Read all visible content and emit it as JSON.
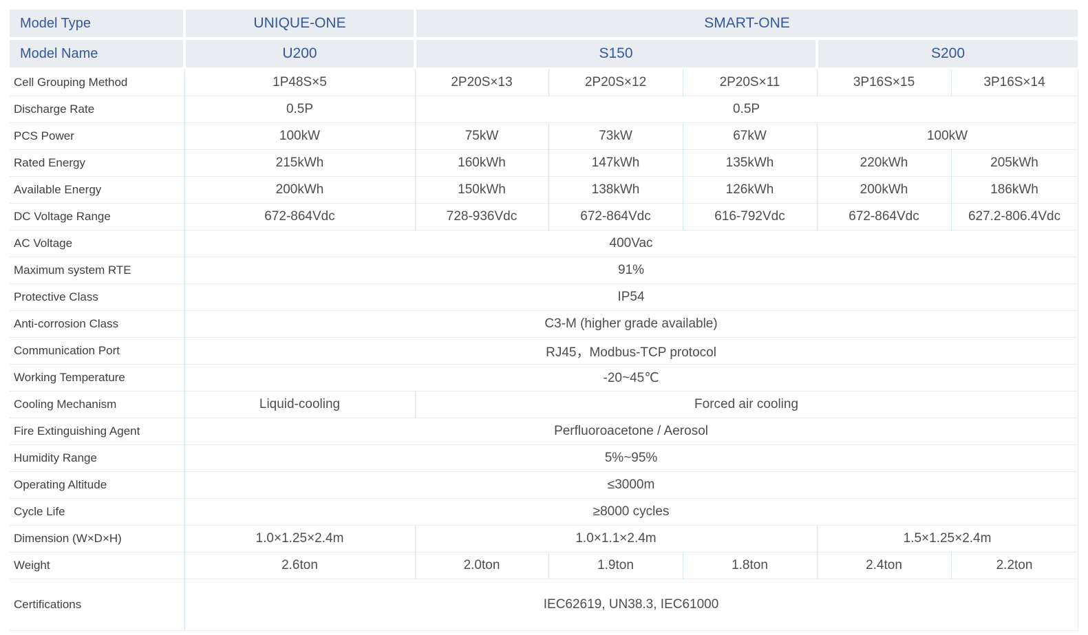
{
  "colors": {
    "header_bg": "#e9edf2",
    "header_text": "#33589a",
    "label_text": "#3f3f3f",
    "value_text": "#4d4d4d",
    "h_border": "#e9ebed",
    "v_border": "#d6e6ef"
  },
  "table": {
    "header": {
      "model_type_label": "Model Type",
      "model_name_label": "Model Name",
      "brands": [
        {
          "name": "UNIQUE-ONE",
          "span": 1
        },
        {
          "name": "SMART-ONE",
          "span": 5
        }
      ],
      "models": [
        {
          "name": "U200",
          "span": 1
        },
        {
          "name": "S150",
          "span": 3
        },
        {
          "name": "S200",
          "span": 2
        }
      ]
    },
    "rows": [
      {
        "label": "Cell Grouping Method",
        "cells": [
          {
            "text": "1P48S×5",
            "span": 1
          },
          {
            "text": "2P20S×13",
            "span": 1
          },
          {
            "text": "2P20S×12",
            "span": 1
          },
          {
            "text": "2P20S×11",
            "span": 1
          },
          {
            "text": "3P16S×15",
            "span": 1
          },
          {
            "text": "3P16S×14",
            "span": 1
          }
        ]
      },
      {
        "label": "Discharge Rate",
        "cells": [
          {
            "text": "0.5P",
            "span": 1
          },
          {
            "text": "0.5P",
            "span": 5
          }
        ]
      },
      {
        "label": "PCS Power",
        "cells": [
          {
            "text": "100kW",
            "span": 1
          },
          {
            "text": "75kW",
            "span": 1
          },
          {
            "text": "73kW",
            "span": 1
          },
          {
            "text": "67kW",
            "span": 1
          },
          {
            "text": "100kW",
            "span": 2
          }
        ]
      },
      {
        "label": "Rated Energy",
        "cells": [
          {
            "text": "215kWh",
            "span": 1
          },
          {
            "text": "160kWh",
            "span": 1
          },
          {
            "text": "147kWh",
            "span": 1
          },
          {
            "text": "135kWh",
            "span": 1
          },
          {
            "text": "220kWh",
            "span": 1
          },
          {
            "text": "205kWh",
            "span": 1
          }
        ]
      },
      {
        "label": "Available Energy",
        "cells": [
          {
            "text": "200kWh",
            "span": 1
          },
          {
            "text": "150kWh",
            "span": 1
          },
          {
            "text": "138kWh",
            "span": 1
          },
          {
            "text": "126kWh",
            "span": 1
          },
          {
            "text": "200kWh",
            "span": 1
          },
          {
            "text": "186kWh",
            "span": 1
          }
        ]
      },
      {
        "label": "DC Voltage Range",
        "cells": [
          {
            "text": "672-864Vdc",
            "span": 1
          },
          {
            "text": "728-936Vdc",
            "span": 1
          },
          {
            "text": "672-864Vdc",
            "span": 1
          },
          {
            "text": "616-792Vdc",
            "span": 1
          },
          {
            "text": "672-864Vdc",
            "span": 1
          },
          {
            "text": "627.2-806.4Vdc",
            "span": 1
          }
        ]
      },
      {
        "label": "AC Voltage",
        "cells": [
          {
            "text": "400Vac",
            "span": 6
          }
        ]
      },
      {
        "label": "Maximum system RTE",
        "cells": [
          {
            "text": "91%",
            "span": 6
          }
        ]
      },
      {
        "label": "Protective Class",
        "cells": [
          {
            "text": "IP54",
            "span": 6
          }
        ]
      },
      {
        "label": "Anti-corrosion Class",
        "cells": [
          {
            "text": "C3-M (higher grade available)",
            "span": 6
          }
        ]
      },
      {
        "label": "Communication Port",
        "cells": [
          {
            "text": "RJ45，Modbus-TCP protocol",
            "span": 6
          }
        ]
      },
      {
        "label": "Working Temperature",
        "cells": [
          {
            "text": "-20~45℃",
            "span": 6
          }
        ]
      },
      {
        "label": "Cooling Mechanism",
        "cells": [
          {
            "text": "Liquid-cooling",
            "span": 1
          },
          {
            "text": "Forced air cooling",
            "span": 5
          }
        ]
      },
      {
        "label": "Fire Extinguishing Agent",
        "cells": [
          {
            "text": "Perfluoroacetone / Aerosol",
            "span": 6
          }
        ]
      },
      {
        "label": "Humidity Range",
        "cells": [
          {
            "text": "5%~95%",
            "span": 6
          }
        ]
      },
      {
        "label": "Operating Altitude",
        "cells": [
          {
            "text": "≤3000m",
            "span": 6
          }
        ]
      },
      {
        "label": "Cycle Life",
        "cells": [
          {
            "text": "≥8000 cycles",
            "span": 6
          }
        ]
      },
      {
        "label": "Dimension (W×D×H)",
        "cells": [
          {
            "text": "1.0×1.25×2.4m",
            "span": 1
          },
          {
            "text": "1.0×1.1×2.4m",
            "span": 3
          },
          {
            "text": "1.5×1.25×2.4m",
            "span": 2
          }
        ]
      },
      {
        "label": "Weight",
        "cells": [
          {
            "text": "2.6ton",
            "span": 1
          },
          {
            "text": "2.0ton",
            "span": 1
          },
          {
            "text": "1.9ton",
            "span": 1
          },
          {
            "text": "1.8ton",
            "span": 1
          },
          {
            "text": "2.4ton",
            "span": 1
          },
          {
            "text": "2.2ton",
            "span": 1
          }
        ]
      },
      {
        "label": "Certifications",
        "tall": true,
        "cells": [
          {
            "text": "IEC62619, UN38.3, IEC61000",
            "span": 6
          }
        ]
      }
    ]
  }
}
